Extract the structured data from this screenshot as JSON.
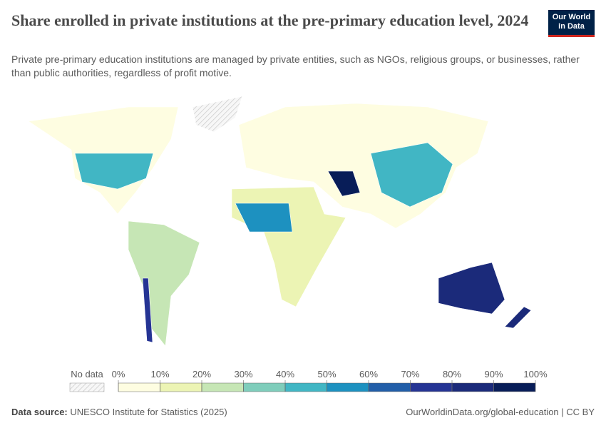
{
  "chart_data": {
    "type": "choropleth",
    "title": "Share enrolled in private institutions at the pre-primary education level, 2024",
    "subtitle": "Private pre-primary education institutions are managed by private entities, such as NGOs, religious groups, or businesses, rather than public authorities, regardless of profit motive.",
    "logo": [
      "Our World",
      "in Data"
    ],
    "legend": {
      "no_data": "No data",
      "ticks": [
        {
          "value": 0,
          "label": "0%"
        },
        {
          "value": 10,
          "label": "10%"
        },
        {
          "value": 20,
          "label": "20%"
        },
        {
          "value": 30,
          "label": "30%"
        },
        {
          "value": 40,
          "label": "40%"
        },
        {
          "value": 50,
          "label": "50%"
        },
        {
          "value": 60,
          "label": "60%"
        },
        {
          "value": 70,
          "label": "70%"
        },
        {
          "value": 80,
          "label": "80%"
        },
        {
          "value": 90,
          "label": "90%"
        },
        {
          "value": 100,
          "label": "100%"
        }
      ],
      "colors": [
        "#fefde1",
        "#ecf4b4",
        "#c6e6b5",
        "#7fcdbb",
        "#41b6c4",
        "#1d91c0",
        "#225ea8",
        "#253494",
        "#1b2a7a",
        "#081d58"
      ]
    },
    "source_label": "Data source:",
    "source": "UNESCO Institute for Statistics (2025)",
    "url": "OurWorldinData.org/global-education | CC BY"
  }
}
